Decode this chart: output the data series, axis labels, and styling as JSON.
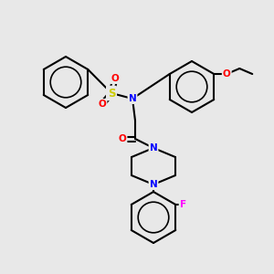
{
  "background_color": "#e8e8e8",
  "bond_color": "#000000",
  "atom_colors": {
    "N": "#0000ff",
    "O": "#ff0000",
    "S": "#cccc00",
    "F": "#ff00ff",
    "C": "#000000"
  },
  "bond_width": 1.5,
  "font_size": 7.5
}
